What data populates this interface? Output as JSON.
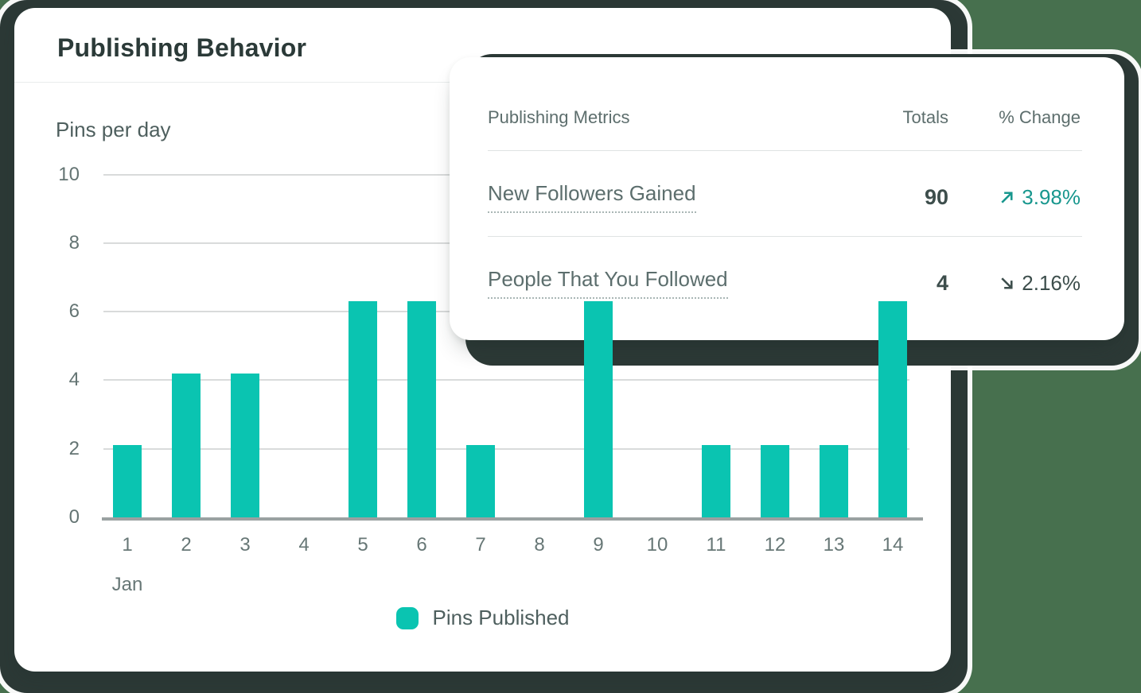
{
  "main_card": {
    "title": "Publishing Behavior"
  },
  "chart_data": {
    "type": "bar",
    "title": "Pins per day",
    "categories": [
      "1",
      "2",
      "3",
      "4",
      "5",
      "6",
      "7",
      "8",
      "9",
      "10",
      "11",
      "12",
      "13",
      "14"
    ],
    "x_group_label": "Jan",
    "values": [
      2.1,
      4.2,
      4.2,
      0,
      6.3,
      6.3,
      2.1,
      0,
      6.3,
      0,
      2.1,
      2.1,
      2.1,
      6.3
    ],
    "occluded_bars": {
      "9": "top hidden behind overlay card (value estimated)",
      "14": "top hidden behind overlay card (value estimated)"
    },
    "ylim": [
      0,
      10
    ],
    "yticks": [
      0,
      2,
      4,
      6,
      8,
      10
    ],
    "grid": true,
    "legend_position": "bottom-center",
    "legend": [
      {
        "label": "Pins Published",
        "color": "#0ac4b1"
      }
    ],
    "bar_color": "#0ac4b1"
  },
  "metrics_card": {
    "title": "Publishing Metrics",
    "columns": {
      "totals": "Totals",
      "change": "% Change"
    },
    "rows": [
      {
        "label": "New Followers Gained",
        "total": "90",
        "change": "3.98%",
        "direction": "up"
      },
      {
        "label": "People That You Followed",
        "total": "4",
        "change": "2.16%",
        "direction": "down"
      }
    ]
  },
  "colors": {
    "accent_teal": "#0ac4b1",
    "trend_up_teal": "#18978e",
    "trend_down_dark": "#3d4e4c",
    "background_green": "#47704e",
    "shadow_dark": "#2c3936",
    "gridline_gray": "#d9dbdb",
    "axis_baseline_gray": "#9aa1a1"
  }
}
